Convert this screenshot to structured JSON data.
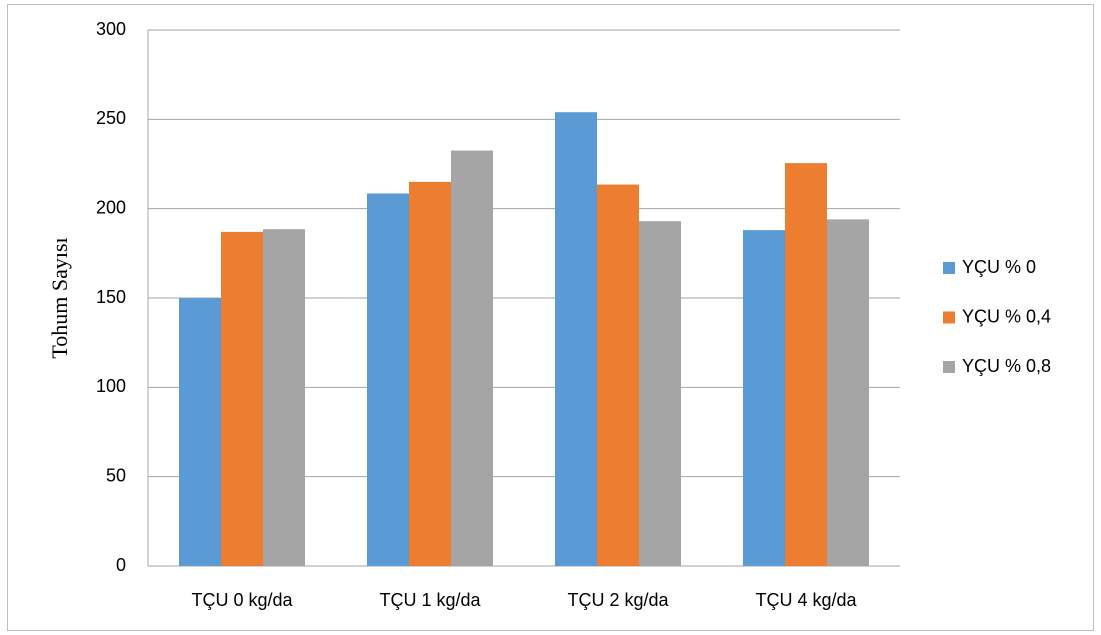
{
  "chart_data": {
    "type": "bar",
    "y_label": "Tohum Sayısı",
    "categories": [
      "TÇU 0 kg/da",
      "TÇU 1 kg/da",
      "TÇU 2 kg/da",
      "TÇU 4 kg/da"
    ],
    "series": [
      {
        "name": "YÇU % 0",
        "color": "#5b9bd5",
        "values": [
          150,
          208.5,
          254,
          188
        ]
      },
      {
        "name": "YÇU % 0,4",
        "color": "#ed7d31",
        "values": [
          187,
          215,
          213.5,
          225.5
        ]
      },
      {
        "name": "YÇU % 0,8",
        "color": "#a5a5a5",
        "values": [
          188.5,
          232.5,
          193,
          194
        ]
      }
    ],
    "ylim": [
      0,
      300
    ],
    "yticks": [
      0,
      50,
      100,
      150,
      200,
      250,
      300
    ],
    "grid": true,
    "legend": "right"
  }
}
